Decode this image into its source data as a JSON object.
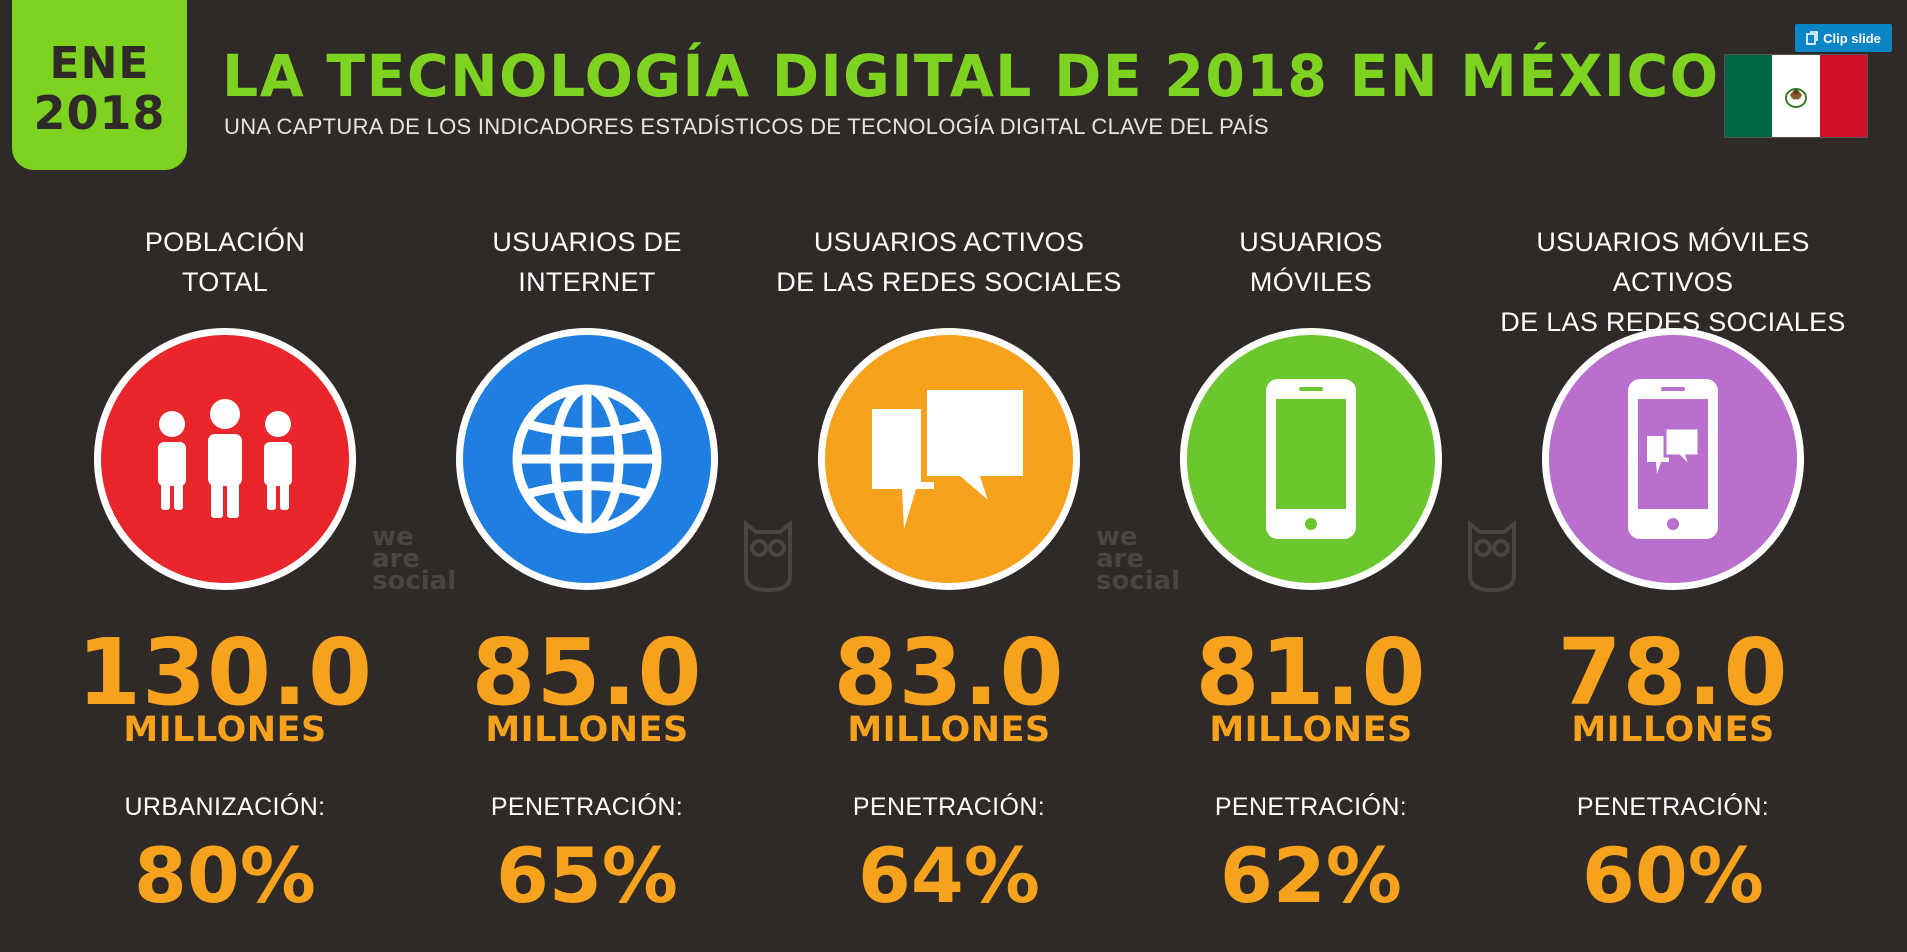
{
  "header": {
    "date_month": "ENE",
    "date_year": "2018",
    "title": "LA TECNOLOGÍA DIGITAL DE 2018 EN MÉXICO",
    "subtitle": "UNA CAPTURA DE LOS INDICADORES ESTADÍSTICOS DE TECNOLOGÍA DIGITAL CLAVE DEL PAÍS"
  },
  "clip_button": {
    "label": "Clip slide",
    "icon": "clip-icon"
  },
  "flag": {
    "icon": "mexico-flag-icon",
    "colors": [
      "#006847",
      "#ffffff",
      "#ce1126"
    ]
  },
  "watermarks": {
    "text": "we\nare\nsocial",
    "owl_icon": "hootsuite-owl-icon"
  },
  "colors": {
    "background": "#2f2a27",
    "accent_green": "#7ed321",
    "value_orange": "#f7a21d"
  },
  "stats": [
    {
      "label": "POBLACIÓN\nTOTAL",
      "icon": "people-icon",
      "circle_color": "#e8262b",
      "value": "130.0",
      "unit": "MILLONES",
      "metric_label": "URBANIZACIÓN:",
      "metric_value": "80%"
    },
    {
      "label": "USUARIOS DE\nINTERNET",
      "icon": "globe-icon",
      "circle_color": "#1f7fe0",
      "value": "85.0",
      "unit": "MILLONES",
      "metric_label": "PENETRACIÓN:",
      "metric_value": "65%"
    },
    {
      "label": "USUARIOS ACTIVOS\nDE LAS REDES SOCIALES",
      "icon": "chat-bubbles-icon",
      "circle_color": "#f7a21d",
      "value": "83.0",
      "unit": "MILLONES",
      "metric_label": "PENETRACIÓN:",
      "metric_value": "64%"
    },
    {
      "label": "USUARIOS\nMÓVILES",
      "icon": "mobile-phone-icon",
      "circle_color": "#6cc62d",
      "value": "81.0",
      "unit": "MILLONES",
      "metric_label": "PENETRACIÓN:",
      "metric_value": "62%"
    },
    {
      "label": "USUARIOS MÓVILES ACTIVOS\nDE LAS REDES SOCIALES",
      "icon": "mobile-social-icon",
      "circle_color": "#b86fce",
      "value": "78.0",
      "unit": "MILLONES",
      "metric_label": "PENETRACIÓN:",
      "metric_value": "60%"
    }
  ]
}
